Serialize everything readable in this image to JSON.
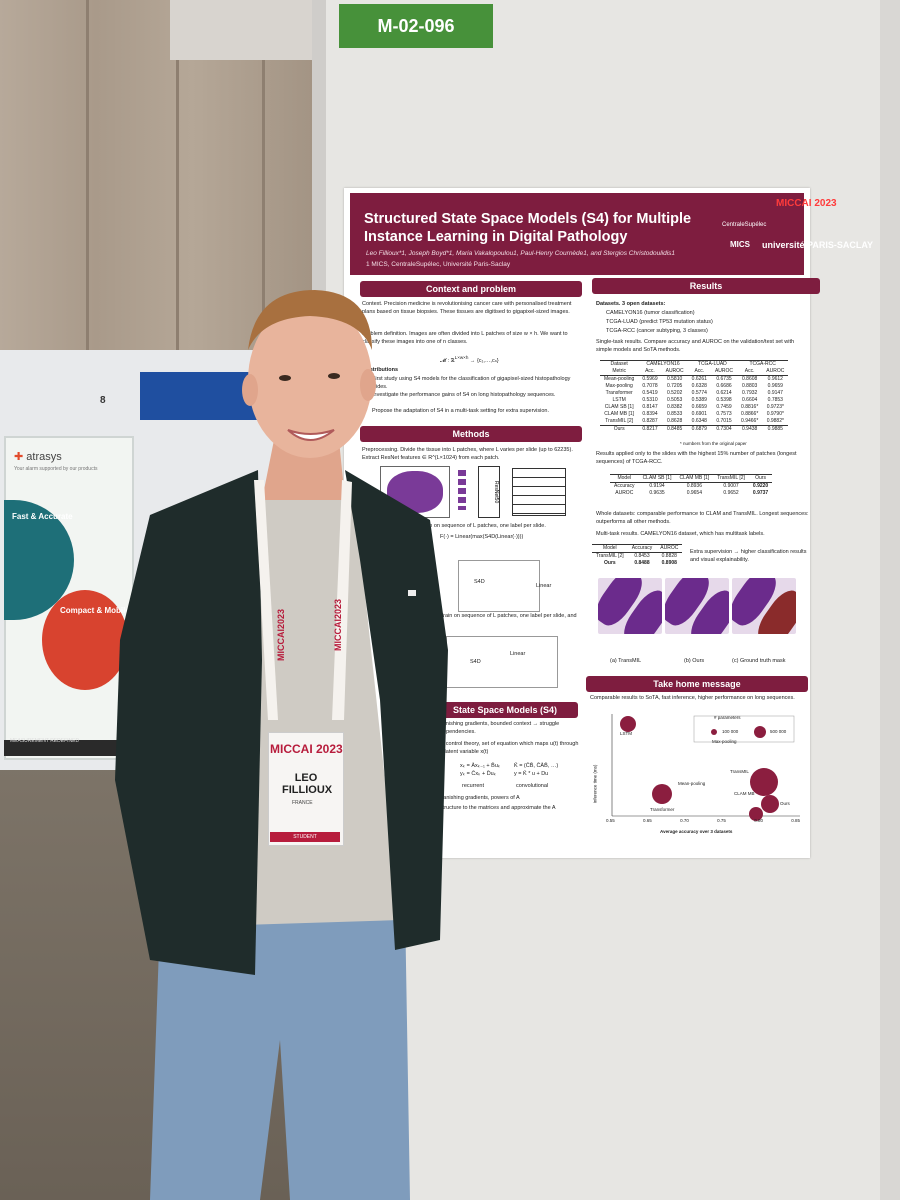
{
  "booth": {
    "number": "8"
  },
  "sponsor_banner": {
    "logo": "atrasys",
    "tagline": "Your alarm supported by our products",
    "headline_1": "Fast & Accurate",
    "headline_2": "Compact & Mobile",
    "footer": "MEASUREMENT REDEFINED"
  },
  "board_tag": "M-02-096",
  "poster": {
    "title": "Structured State Space Models (S4) for Multiple Instance Learning in Digital Pathology",
    "authors": "Leo Fillioux*1, Joseph Boyd*1, Maria Vakalopoulou1, Paul-Henry Cournède1, and Stergios Christodoulidis1",
    "affiliation": "1 MICS, CentraleSupélec, Université Paris-Saclay",
    "logos": {
      "miccai": "MICCAI 2023",
      "centrale": "CentraleSupélec",
      "mics": "MICS",
      "universite": "université PARIS-SACLAY"
    },
    "sections": {
      "context": {
        "heading": "Context and problem",
        "text_1": "Context. Precision medicine is revolutionising cancer care with personalised treatment plans based on tissue biopsies. These tissues are digitised to gigapixel-sized images.",
        "text_2": "Problem definition. Images are often divided into L patches of size w × h. We want to classify these images into one of n classes.",
        "contributions_head": "Contributions",
        "contrib_1": "First study using S4 models for the classification of gigapixel-sized histopathology slides.",
        "contrib_2": "Investigate the performance gains of S4 on long histopathology sequences.",
        "contrib_3": "Propose the adaptation of S4 in a multi-task setting for extra supervision."
      },
      "methods": {
        "heading": "Methods",
        "text_1": "Preprocessing. Divide the tissue into L patches, where L varies per slide (up to 62235). Extract ResNet features ∈ R^(L×1024) from each patch.",
        "text_2": "Train on sequence of L patches, one label per slide.",
        "text_3": "Train on sequence of L patches, one label per slide, and",
        "labels": {
          "resnet": "ResNet50",
          "s4d": "S4D",
          "linear": "Linear",
          "formula": "F(·) = Linear(max(S4D(Linear(·))))"
        }
      },
      "s4": {
        "heading": "State Space Models (S4)",
        "text_1": "vanishing gradients, bounded context → struggle dependencies.",
        "text_2": "in control theory, set of equation which maps u(t) through a latent variable x(t)",
        "recurrent": "recurrent",
        "convolutional": "convolutional",
        "text_3": "Vanishing gradients, powers of A",
        "text_4": "structure to the matrices and approximate the A"
      },
      "results": {
        "heading": "Results",
        "datasets_head": "Datasets. 3 open datasets:",
        "ds_1": "CAMELYON16 (tumor classification)",
        "ds_2": "TCGA-LUAD (predict TP53 mutation status)",
        "ds_3": "TCGA-RCC (cancer subtyping, 3 classes)",
        "single_task": "Single-task results. Compare accuracy and AUROC on the validation/test set with simple models and SoTA methods.",
        "footnote": "* numbers from the original paper",
        "long_seq": "Results applied only to the slides with the highest 15% number of patches (longest sequences) of TCGA-RCC.",
        "whole": "Whole datasets: comparable performance to CLAM and TransMIL. Longest sequences: outperforms all other methods.",
        "multi_task": "Multi-task results. CAMELYON16 dataset, which has multitask labels.",
        "multi_note": "Extra supervision → higher classification results and visual explainability.",
        "captions": [
          "(a) TransMIL",
          "(b) Ours",
          "(c) Ground truth mask"
        ]
      },
      "take_home": {
        "heading": "Take home message",
        "text": "Comparable results to SoTA, fast inference, higher performance on long sequences.",
        "bubble_legend": "# parameters",
        "legend_vals": [
          "100 000",
          "500 000"
        ],
        "xlabel": "Average accuracy over 3 datasets",
        "ylabel": "Inference time (ms)",
        "points": [
          "LSTM",
          "Max-pooling",
          "Mean-pooling",
          "Transformer",
          "TransMIL",
          "CLAM MB",
          "Ours"
        ],
        "xticks": [
          "0.55",
          "0.65",
          "0.70",
          "0.75",
          "0.80",
          "0.85"
        ]
      }
    },
    "table_main": {
      "headers": [
        "Dataset",
        "CAMELYON16",
        "TCGA-LUAD",
        "TCGA-RCC"
      ],
      "sub": [
        "Metric",
        "Acc.",
        "AUROC",
        "Acc.",
        "AUROC",
        "Acc.",
        "AUROC"
      ],
      "rows": [
        [
          "Mean-pooling",
          "0.5969",
          "0.5810",
          "0.6261",
          "0.6735",
          "0.8608",
          "0.9612"
        ],
        [
          "Max-pooling",
          "0.7078",
          "0.7205",
          "0.6328",
          "0.6686",
          "0.8803",
          "0.9659"
        ],
        [
          "Transformer",
          "0.5419",
          "0.5202",
          "0.5774",
          "0.6214",
          "0.7932",
          "0.9147"
        ],
        [
          "LSTM",
          "0.5310",
          "0.5053",
          "0.5389",
          "0.5398",
          "0.6604",
          "0.7853"
        ],
        [
          "CLAM SB [1]",
          "0.8147",
          "0.8382",
          "0.6659",
          "0.7459",
          "0.8816*",
          "0.9723*"
        ],
        [
          "CLAM MB [1]",
          "0.8394",
          "0.8533",
          "0.6901",
          "0.7573",
          "0.8866*",
          "0.9790*"
        ],
        [
          "TransMIL [2]",
          "0.8287",
          "0.8628",
          "0.6348",
          "0.7015",
          "0.9466*",
          "0.9882*"
        ],
        [
          "Ours",
          "0.8217",
          "0.8485",
          "0.6879",
          "0.7304",
          "0.9438",
          "0.9885"
        ]
      ]
    },
    "table_long": {
      "headers": [
        "Model",
        "CLAM SB [1]",
        "CLAM MB [1]",
        "TransMIL [2]",
        "Ours"
      ],
      "rows": [
        [
          "Accuracy",
          "0.9194",
          "0.8936",
          "0.9007",
          "0.9220"
        ],
        [
          "AUROC",
          "0.9635",
          "0.9654",
          "0.9652",
          "0.9737"
        ]
      ]
    },
    "table_multi": {
      "headers": [
        "Model",
        "Accuracy",
        "AUROC"
      ],
      "rows": [
        [
          "TransMIL [2]",
          "0.8453",
          "0.8828"
        ],
        [
          "Ours",
          "0.8488",
          "0.8908"
        ]
      ]
    }
  },
  "badge": {
    "event": "MICCAI 2023",
    "first": "LEO",
    "last": "FILLIOUX",
    "country": "FRANCE",
    "role": "STUDENT"
  },
  "lanyard": "MICCAI2023"
}
